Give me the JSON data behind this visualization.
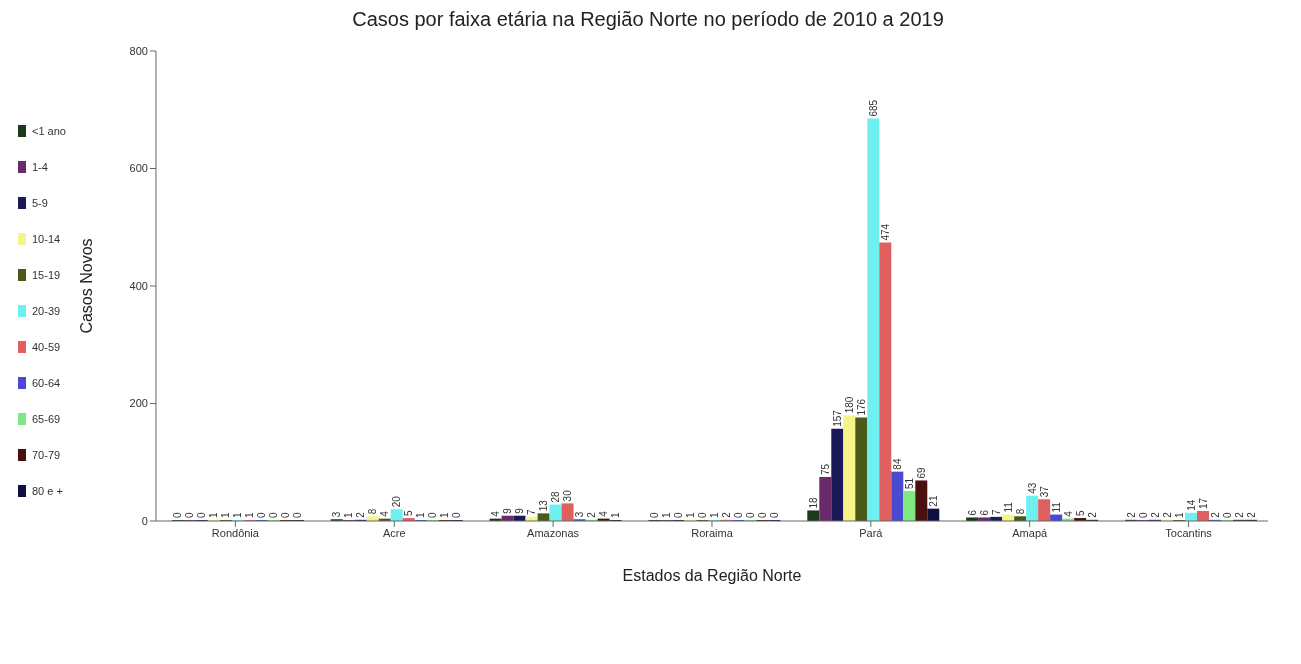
{
  "chart_data": {
    "type": "bar",
    "title": "Casos por faixa etária na Região Norte no período de 2010 a 2019",
    "xlabel": "Estados da Região Norte",
    "ylabel": "Casos Novos",
    "categories": [
      "Rondônia",
      "Acre",
      "Amazonas",
      "Roraima",
      "Pará",
      "Amapá",
      "Tocantins"
    ],
    "series": [
      {
        "name": "<1 ano",
        "color": "#1a3a1a",
        "values": [
          0,
          3,
          4,
          0,
          18,
          6,
          2
        ]
      },
      {
        "name": "1-4",
        "color": "#6b2a6b",
        "values": [
          0,
          1,
          9,
          1,
          75,
          6,
          0
        ]
      },
      {
        "name": "5-9",
        "color": "#1a1a5a",
        "values": [
          0,
          2,
          9,
          0,
          157,
          7,
          2
        ]
      },
      {
        "name": "10-14",
        "color": "#f5f58a",
        "values": [
          1,
          8,
          7,
          1,
          180,
          11,
          2
        ]
      },
      {
        "name": "15-19",
        "color": "#4a5a1a",
        "values": [
          1,
          4,
          13,
          0,
          176,
          8,
          1
        ]
      },
      {
        "name": "20-39",
        "color": "#6ff0f0",
        "values": [
          1,
          20,
          28,
          1,
          685,
          43,
          14
        ]
      },
      {
        "name": "40-59",
        "color": "#e06060",
        "values": [
          1,
          5,
          30,
          2,
          474,
          37,
          17
        ]
      },
      {
        "name": "60-64",
        "color": "#4a4ad0",
        "values": [
          0,
          1,
          3,
          0,
          84,
          11,
          2
        ]
      },
      {
        "name": "65-69",
        "color": "#80e880",
        "values": [
          0,
          0,
          2,
          0,
          51,
          4,
          0
        ]
      },
      {
        "name": "70-79",
        "color": "#4a1010",
        "values": [
          0,
          1,
          4,
          0,
          69,
          5,
          2
        ]
      },
      {
        "name": "80 e +",
        "color": "#101040",
        "values": [
          0,
          0,
          1,
          0,
          21,
          2,
          2
        ]
      }
    ],
    "ylim": [
      0,
      800
    ],
    "yticks": [
      0,
      200,
      400,
      600,
      800
    ],
    "grid": false,
    "legend": "left",
    "data_labels": true
  }
}
